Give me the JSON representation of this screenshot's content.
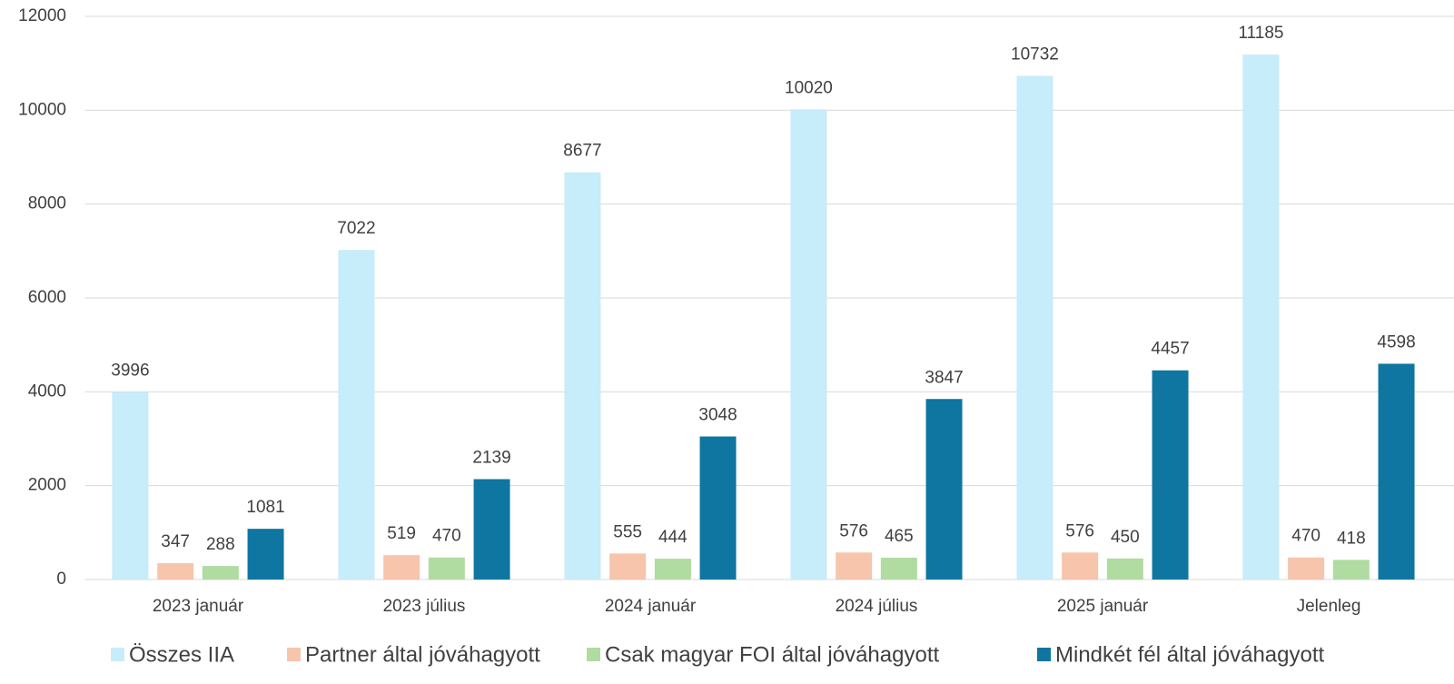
{
  "chart_data": {
    "type": "bar",
    "categories": [
      "2023 január",
      "2023 július",
      "2024 január",
      "2024 július",
      "2025 január",
      "Jelenleg"
    ],
    "series": [
      {
        "name": "Összes IIA",
        "color": "#c7ecfa",
        "values": [
          3996,
          7022,
          8677,
          10020,
          10732,
          11185
        ]
      },
      {
        "name": "Partner által jóváhagyott",
        "color": "#f6c5ab",
        "values": [
          347,
          519,
          555,
          576,
          576,
          470
        ]
      },
      {
        "name": "Csak magyar FOI által jóváhagyott",
        "color": "#b0dba1",
        "values": [
          288,
          470,
          444,
          465,
          450,
          418
        ]
      },
      {
        "name": "Mindkét fél által jóváhagyott",
        "color": "#0e76a0",
        "values": [
          1081,
          2139,
          3048,
          3847,
          4457,
          4598
        ]
      }
    ],
    "ylim": [
      0,
      12000
    ],
    "yticks": [
      0,
      2000,
      4000,
      6000,
      8000,
      10000,
      12000
    ],
    "grid": true,
    "legend": "bottom"
  }
}
